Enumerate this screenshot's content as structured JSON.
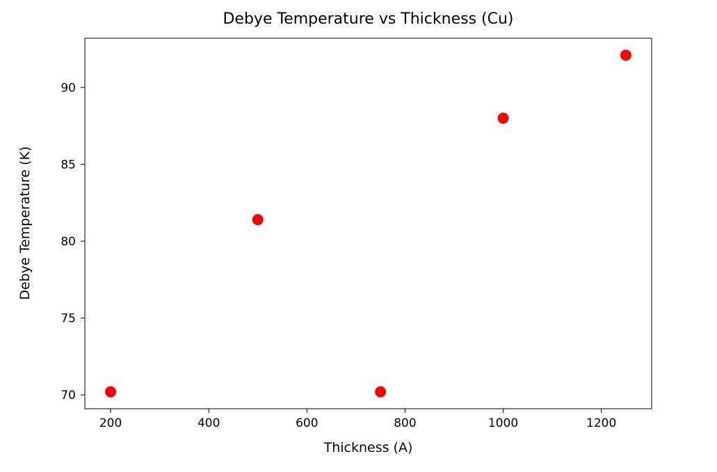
{
  "figure": {
    "background_color": "#ffffff",
    "axes_color": "#000000",
    "text_color": "#000000"
  },
  "chart_data": {
    "type": "scatter",
    "title": "Debye Temperature vs Thickness (Cu)",
    "xlabel": "Thickness (A)",
    "ylabel": "Debye Temperature (K)",
    "x": [
      200,
      500,
      750,
      1000,
      1250
    ],
    "y": [
      70.2,
      81.4,
      70.2,
      88.0,
      92.1
    ],
    "xlim": [
      147.5,
      1302.5
    ],
    "ylim": [
      69.1,
      93.2
    ],
    "xticks": [
      200,
      400,
      600,
      800,
      1000,
      1200
    ],
    "yticks": [
      70,
      75,
      80,
      85,
      90
    ],
    "marker": {
      "shape": "circle",
      "color": "#ff0000",
      "radius": 8
    },
    "grid": false,
    "legend": "none"
  }
}
